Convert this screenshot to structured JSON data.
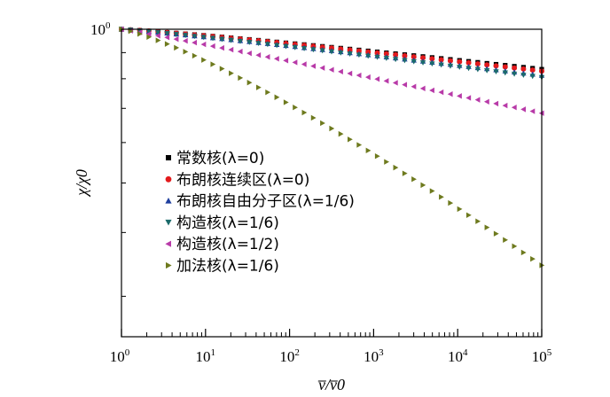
{
  "chart_data": {
    "type": "scatter",
    "xscale": "log",
    "yscale": "log",
    "xlim": [
      1,
      100000
    ],
    "xlabel": "v̅/v̅0",
    "ylabel": "χ/χ0",
    "y_top_tick_label": "10",
    "y_top_tick_exp": "0",
    "x_tick_bases": [
      "10",
      "10",
      "10",
      "10",
      "10",
      "10"
    ],
    "x_tick_exps": [
      "0",
      "1",
      "2",
      "3",
      "4",
      "5"
    ],
    "legend_position": "left-middle",
    "series": [
      {
        "name": "常数核(λ=0)",
        "marker": "square",
        "color": "#000000",
        "points": [
          [
            1,
            1.0
          ],
          [
            100000,
            0.835
          ]
        ]
      },
      {
        "name": "布朗核连续区(λ=0)",
        "marker": "circle",
        "color": "#e31a1c",
        "points": [
          [
            1,
            1.0
          ],
          [
            100000,
            0.828
          ]
        ]
      },
      {
        "name": "布朗核自由分子区(λ=1/6)",
        "marker": "triangle-up",
        "color": "#1f3f9e",
        "points": [
          [
            1,
            1.0
          ],
          [
            100000,
            0.812
          ]
        ]
      },
      {
        "name": "构造核(λ=1/6)",
        "marker": "triangle-down",
        "color": "#1b6b6b",
        "points": [
          [
            1,
            1.0
          ],
          [
            100000,
            0.805
          ]
        ]
      },
      {
        "name": "构造核(λ=1/2)",
        "marker": "triangle-left",
        "color": "#b83aa8",
        "points": [
          [
            1,
            1.0
          ],
          [
            100000,
            0.685
          ]
        ]
      },
      {
        "name": "加法核(λ=1/6)",
        "marker": "triangle-right",
        "color": "#6e7a1e",
        "points": [
          [
            1,
            1.0
          ],
          [
            100000,
            0.345
          ]
        ]
      }
    ]
  }
}
